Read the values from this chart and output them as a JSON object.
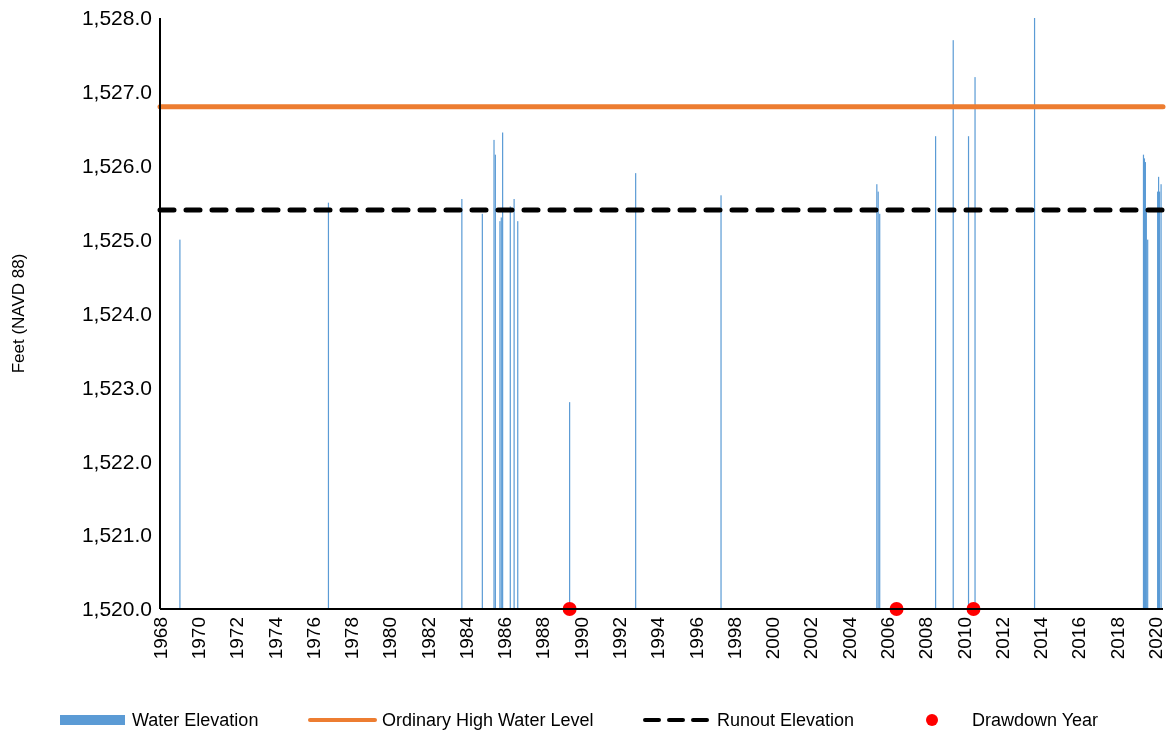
{
  "chart_data": {
    "type": "bar",
    "ylabel": "Feet (NAVD 88)",
    "xlim": [
      1968,
      2020.4
    ],
    "ylim": [
      1520,
      1528
    ],
    "xticks": [
      1968,
      1970,
      1972,
      1974,
      1976,
      1978,
      1980,
      1982,
      1984,
      1986,
      1988,
      1990,
      1992,
      1994,
      1996,
      1998,
      2000,
      2002,
      2004,
      2006,
      2008,
      2010,
      2012,
      2014,
      2016,
      2018,
      2020
    ],
    "yticks": [
      {
        "value": 1520,
        "label": "1,520.0"
      },
      {
        "value": 1521,
        "label": "1,521.0"
      },
      {
        "value": 1522,
        "label": "1,522.0"
      },
      {
        "value": 1523,
        "label": "1,523.0"
      },
      {
        "value": 1524,
        "label": "1,524.0"
      },
      {
        "value": 1525,
        "label": "1,525.0"
      },
      {
        "value": 1526,
        "label": "1,526.0"
      },
      {
        "value": 1527,
        "label": "1,527.0"
      },
      {
        "value": 1528,
        "label": "1,528.0"
      }
    ],
    "legend": "bottom",
    "series": [
      {
        "name": "Water Elevation",
        "color": "#5b9bd5",
        "x": [
          1969.04,
          1976.8,
          1983.77,
          1984.84,
          1985.45,
          1985.52,
          1985.76,
          1985.83,
          1985.9,
          1986.3,
          1986.5,
          1986.69,
          1989.4,
          1992.85,
          1997.31,
          2005.45,
          2005.52,
          2005.6,
          2008.52,
          2009.44,
          2010.24,
          2010.58,
          2013.69,
          2019.38,
          2019.43,
          2019.48,
          2019.53,
          2019.6,
          2020.12,
          2020.17,
          2020.22,
          2020.3
        ],
        "values": [
          1525.0,
          1525.5,
          1525.55,
          1525.35,
          1526.35,
          1526.15,
          1525.25,
          1525.3,
          1526.45,
          1525.45,
          1525.55,
          1525.25,
          1522.8,
          1525.9,
          1525.6,
          1525.75,
          1525.65,
          1525.35,
          1526.4,
          1527.7,
          1526.4,
          1527.2,
          1528.0,
          1526.15,
          1526.1,
          1526.05,
          1525.4,
          1525.0,
          1525.65,
          1525.85,
          1525.65,
          1525.75
        ]
      },
      {
        "name": "Ordinary High Water Level",
        "type": "line",
        "color": "#ed7d31",
        "line_style": "solid",
        "x": [
          1968,
          2020.4
        ],
        "values": [
          1526.8,
          1526.8
        ]
      },
      {
        "name": "Runout Elevation",
        "type": "line",
        "color": "#000000",
        "line_style": "dashed",
        "x": [
          1968,
          2020.4
        ],
        "values": [
          1525.4,
          1525.4
        ]
      },
      {
        "name": "Drawdown Year",
        "type": "scatter",
        "color": "#ff0000",
        "marker": "circle",
        "x": [
          1989.4,
          2006.48,
          2010.5
        ],
        "values": [
          1520,
          1520,
          1520
        ]
      }
    ]
  }
}
